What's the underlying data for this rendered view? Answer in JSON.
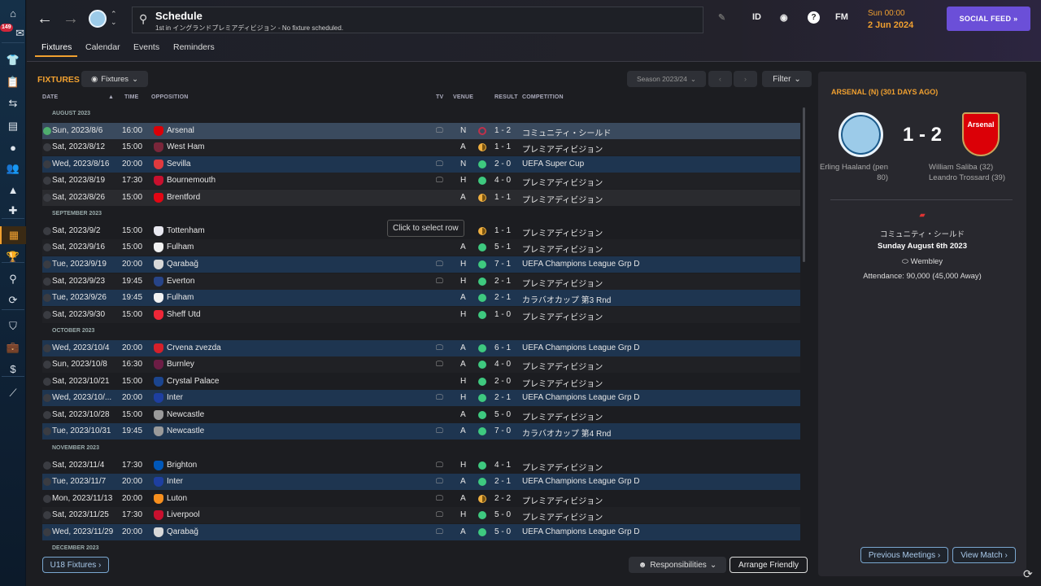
{
  "sidebar": {
    "inbox_count": "149",
    "items": [
      {
        "name": "home-icon",
        "glyph": "⌂"
      },
      {
        "name": "inbox-icon",
        "glyph": "✉"
      },
      {
        "name": "squad-shirt-icon",
        "glyph": "👕"
      },
      {
        "name": "clipboard-icon",
        "glyph": "📋"
      },
      {
        "name": "transfer-arrows-icon",
        "glyph": "⇆"
      },
      {
        "name": "dossier-icon",
        "glyph": "▤"
      },
      {
        "name": "ball-icon",
        "glyph": "●"
      },
      {
        "name": "staff-icon",
        "glyph": "👥"
      },
      {
        "name": "training-cone-icon",
        "glyph": "▲"
      },
      {
        "name": "medical-icon",
        "glyph": "✚"
      },
      {
        "name": "calendar-icon",
        "glyph": "▦",
        "active": true
      },
      {
        "name": "trophy-icon",
        "glyph": "🏆"
      },
      {
        "name": "search-icon",
        "glyph": "⚲"
      },
      {
        "name": "refresh-icon",
        "glyph": "⟳"
      },
      {
        "name": "shield-icon",
        "glyph": "⛉"
      },
      {
        "name": "briefcase-icon",
        "glyph": "💼"
      },
      {
        "name": "money-icon",
        "glyph": "$"
      },
      {
        "name": "chart-icon",
        "glyph": "⟋"
      }
    ]
  },
  "header": {
    "title": "Schedule",
    "subtitle": "1st in イングランドプレミアディビジョン - No fixture scheduled.",
    "id_label": "ID",
    "fm_label": "FM",
    "time": "Sun 00:00",
    "date": "2 Jun 2024",
    "social_feed": "SOCIAL FEED »"
  },
  "tabs": [
    "Fixtures",
    "Calendar",
    "Events",
    "Reminders"
  ],
  "fixtures": {
    "title": "FIXTURES",
    "view_label": "Fixtures",
    "season": "Season 2023/24",
    "filter": "Filter",
    "columns": {
      "date": "DATE",
      "time": "TIME",
      "opposition": "OPPOSITION",
      "tv": "TV",
      "venue": "VENUE",
      "result": "RESULT",
      "competition": "COMPETITION"
    },
    "tooltip": "Click to select row",
    "u18": "U18 Fixtures ›",
    "responsibilities": "Responsibilities",
    "arrange_friendly": "Arrange Friendly",
    "rows": [
      {
        "month": "AUGUST 2023"
      },
      {
        "date": "Sun, 2023/8/6",
        "time": "16:00",
        "opp": "Arsenal",
        "badge": "#db0007",
        "tv": true,
        "venue": "N",
        "outcome": "L",
        "score": "1 - 2",
        "comp": "コミュニティ・シールド",
        "selected": true,
        "played_check": true
      },
      {
        "date": "Sat, 2023/8/12",
        "time": "15:00",
        "opp": "West Ham",
        "badge": "#7a263a",
        "tv": false,
        "venue": "A",
        "outcome": "D",
        "score": "1 - 1",
        "comp": "プレミアディビジョン"
      },
      {
        "date": "Wed, 2023/8/16",
        "time": "20:00",
        "opp": "Sevilla",
        "badge": "#e03a3e",
        "tv": true,
        "venue": "N",
        "outcome": "W",
        "score": "2 - 0",
        "comp": "UEFA Super Cup"
      },
      {
        "date": "Sat, 2023/8/19",
        "time": "17:30",
        "opp": "Bournemouth",
        "badge": "#c8102e",
        "tv": true,
        "venue": "H",
        "outcome": "W",
        "score": "4 - 0",
        "comp": "プレミアディビジョン"
      },
      {
        "date": "Sat, 2023/8/26",
        "time": "15:00",
        "opp": "Brentford",
        "badge": "#e30613",
        "tv": false,
        "venue": "A",
        "outcome": "D",
        "score": "1 - 1",
        "comp": "プレミアディビジョン",
        "hover": true
      },
      {
        "month": "SEPTEMBER 2023"
      },
      {
        "date": "Sat, 2023/9/2",
        "time": "15:00",
        "opp": "Tottenham",
        "badge": "#e8e8f0",
        "tv": false,
        "venue": "",
        "outcome": "D",
        "score": "1 - 1",
        "comp": "プレミアディビジョン"
      },
      {
        "date": "Sat, 2023/9/16",
        "time": "15:00",
        "opp": "Fulham",
        "badge": "#f2f2f2",
        "tv": false,
        "venue": "A",
        "outcome": "W",
        "score": "5 - 1",
        "comp": "プレミアディビジョン"
      },
      {
        "date": "Tue, 2023/9/19",
        "time": "20:00",
        "opp": "Qarabağ",
        "badge": "#d8d8d8",
        "tv": true,
        "venue": "H",
        "outcome": "W",
        "score": "7 - 1",
        "comp": "UEFA Champions League Grp D"
      },
      {
        "date": "Sat, 2023/9/23",
        "time": "19:45",
        "opp": "Everton",
        "badge": "#274488",
        "tv": true,
        "venue": "H",
        "outcome": "W",
        "score": "2 - 1",
        "comp": "プレミアディビジョン"
      },
      {
        "date": "Tue, 2023/9/26",
        "time": "19:45",
        "opp": "Fulham",
        "badge": "#f2f2f2",
        "tv": false,
        "venue": "A",
        "outcome": "W",
        "score": "2 - 1",
        "comp": "カラバオカップ 第3 Rnd"
      },
      {
        "date": "Sat, 2023/9/30",
        "time": "15:00",
        "opp": "Sheff Utd",
        "badge": "#ee2737",
        "tv": false,
        "venue": "H",
        "outcome": "W",
        "score": "1 - 0",
        "comp": "プレミアディビジョン"
      },
      {
        "month": "OCTOBER 2023"
      },
      {
        "date": "Wed, 2023/10/4",
        "time": "20:00",
        "opp": "Crvena zvezda",
        "badge": "#d5202a",
        "tv": true,
        "venue": "A",
        "outcome": "W",
        "score": "6 - 1",
        "comp": "UEFA Champions League Grp D"
      },
      {
        "date": "Sun, 2023/10/8",
        "time": "16:30",
        "opp": "Burnley",
        "badge": "#6c1d45",
        "tv": true,
        "venue": "A",
        "outcome": "W",
        "score": "4 - 0",
        "comp": "プレミアディビジョン"
      },
      {
        "date": "Sat, 2023/10/21",
        "time": "15:00",
        "opp": "Crystal Palace",
        "badge": "#1b458f",
        "tv": false,
        "venue": "H",
        "outcome": "W",
        "score": "2 - 0",
        "comp": "プレミアディビジョン"
      },
      {
        "date": "Wed, 2023/10/...",
        "time": "20:00",
        "opp": "Inter",
        "badge": "#1e3fa0",
        "tv": true,
        "venue": "H",
        "outcome": "W",
        "score": "2 - 1",
        "comp": "UEFA Champions League Grp D"
      },
      {
        "date": "Sat, 2023/10/28",
        "time": "15:00",
        "opp": "Newcastle",
        "badge": "#9a9a9a",
        "tv": false,
        "venue": "A",
        "outcome": "W",
        "score": "5 - 0",
        "comp": "プレミアディビジョン"
      },
      {
        "date": "Tue, 2023/10/31",
        "time": "19:45",
        "opp": "Newcastle",
        "badge": "#9a9a9a",
        "tv": true,
        "venue": "A",
        "outcome": "W",
        "score": "7 - 0",
        "comp": "カラバオカップ 第4 Rnd"
      },
      {
        "month": "NOVEMBER 2023"
      },
      {
        "date": "Sat, 2023/11/4",
        "time": "17:30",
        "opp": "Brighton",
        "badge": "#0057b8",
        "tv": true,
        "venue": "H",
        "outcome": "W",
        "score": "4 - 1",
        "comp": "プレミアディビジョン"
      },
      {
        "date": "Tue, 2023/11/7",
        "time": "20:00",
        "opp": "Inter",
        "badge": "#1e3fa0",
        "tv": true,
        "venue": "A",
        "outcome": "W",
        "score": "2 - 1",
        "comp": "UEFA Champions League Grp D"
      },
      {
        "date": "Mon, 2023/11/13",
        "time": "20:00",
        "opp": "Luton",
        "badge": "#f78f1e",
        "tv": true,
        "venue": "A",
        "outcome": "D",
        "score": "2 - 2",
        "comp": "プレミアディビジョン"
      },
      {
        "date": "Sat, 2023/11/25",
        "time": "17:30",
        "opp": "Liverpool",
        "badge": "#c8102e",
        "tv": true,
        "venue": "H",
        "outcome": "W",
        "score": "5 - 0",
        "comp": "プレミアディビジョン"
      },
      {
        "date": "Wed, 2023/11/29",
        "time": "20:00",
        "opp": "Qarabağ",
        "badge": "#d8d8d8",
        "tv": true,
        "venue": "A",
        "outcome": "W",
        "score": "5 - 0",
        "comp": "UEFA Champions League Grp D"
      },
      {
        "month": "DECEMBER 2023"
      }
    ]
  },
  "match_panel": {
    "title": "ARSENAL (N) (301 DAYS AGO)",
    "home_crest": "MANCHESTER CITY",
    "away_crest": "Arsenal",
    "score": "1 - 2",
    "home_scorers": [
      "Erling Haaland (pen",
      "80)"
    ],
    "away_scorers": [
      "William Saliba (32)",
      "Leandro Trossard (39)"
    ],
    "competition": "コミュニティ・シールド",
    "date": "Sunday August 6th 2023",
    "venue": "Wembley",
    "attendance": "Attendance: 90,000 (45,000 Away)",
    "previous_meetings": "Previous Meetings ›",
    "view_match": "View Match ›"
  },
  "colors": {
    "accent": "#f0a030",
    "social": "#6b4fd8",
    "win": "#3ec97f",
    "draw": "#f0b040",
    "loss": "#c0304a",
    "cup_row": "#1e3550",
    "selected_row": "#3a4a5e"
  }
}
